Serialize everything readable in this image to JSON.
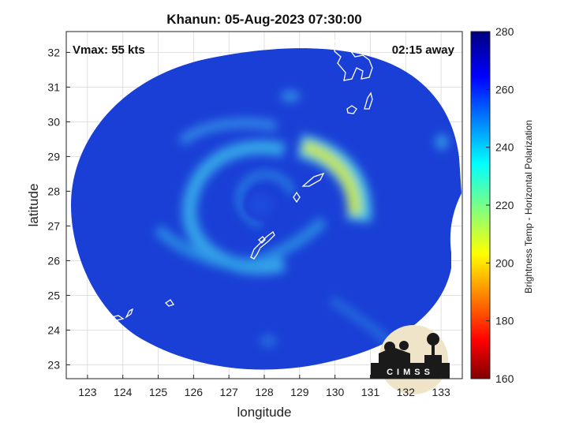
{
  "figure": {
    "title": "Khanun: 05-Aug-2023 07:30:00",
    "vmax_text": "Vmax: 55 kts",
    "time_away_text": "02:15 away",
    "xlabel": "longitude",
    "ylabel": "latitude",
    "colorbar_label": "Brightness Temp - Horizontal Polarization",
    "logo_text": "CIMSS"
  },
  "axes": {
    "x_ticks": [
      "123",
      "124",
      "125",
      "126",
      "127",
      "128",
      "129",
      "130",
      "131",
      "132",
      "133"
    ],
    "y_ticks": [
      "32",
      "31",
      "30",
      "29",
      "28",
      "27",
      "26",
      "25",
      "24",
      "23"
    ],
    "colorbar_ticks": [
      "280",
      "260",
      "240",
      "220",
      "200",
      "180",
      "160"
    ]
  },
  "chart_data": {
    "type": "heatmap",
    "title": "Khanun: 05-Aug-2023 07:30:00",
    "xlabel": "longitude",
    "ylabel": "latitude",
    "xlim": [
      122.4,
      133.6
    ],
    "ylim": [
      22.6,
      32.6
    ],
    "grid": true,
    "colorbar": {
      "label": "Brightness Temp - Horizontal Polarization",
      "range": [
        160,
        280
      ],
      "colormap": "jet"
    },
    "storm_center": {
      "lon": 128.2,
      "lat": 27.8
    },
    "annotations": [
      "Vmax: 55 kts",
      "02:15 away"
    ]
  },
  "colors": {
    "background_field": "#1a3fd6",
    "cold_band": "#42c8f0",
    "warm_band": "#d8e840",
    "coastline": "#ffffff",
    "logo_bg": "#efe3c8"
  }
}
